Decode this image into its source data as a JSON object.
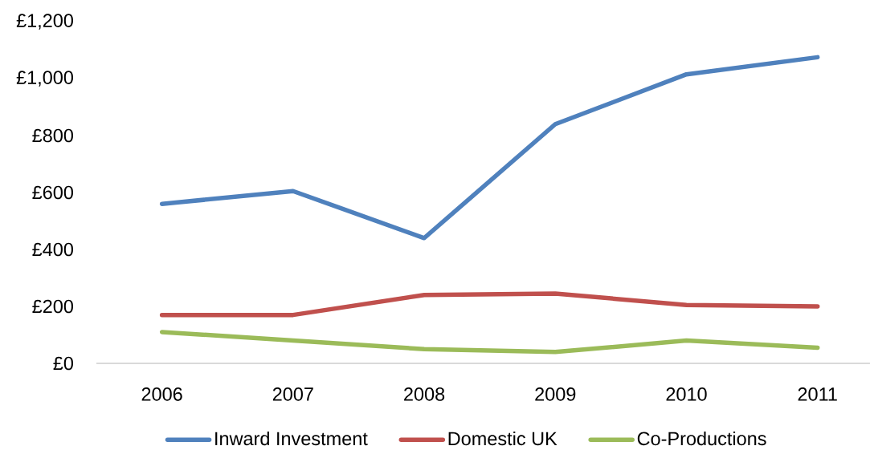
{
  "chart_data": {
    "type": "line",
    "categories": [
      "2006",
      "2007",
      "2008",
      "2009",
      "2010",
      "2011"
    ],
    "series": [
      {
        "name": "Inward Investment",
        "color": "#4f81bd",
        "values": [
          560,
          605,
          440,
          840,
          1015,
          1075
        ]
      },
      {
        "name": "Domestic UK",
        "color": "#c0504d",
        "values": [
          170,
          170,
          240,
          245,
          205,
          200
        ]
      },
      {
        "name": "Co-Productions",
        "color": "#9bbb59",
        "values": [
          110,
          80,
          50,
          40,
          80,
          55
        ]
      }
    ],
    "ylim": [
      0,
      1200
    ],
    "yticks": [
      {
        "value": 0,
        "label": "£0"
      },
      {
        "value": 200,
        "label": "£200"
      },
      {
        "value": 400,
        "label": "£400"
      },
      {
        "value": 600,
        "label": "£600"
      },
      {
        "value": 800,
        "label": "£800"
      },
      {
        "value": 1000,
        "label": "£1,000"
      },
      {
        "value": 1200,
        "label": "£1,200"
      }
    ],
    "legend": "bottom",
    "marker": "none",
    "line_style": "solid"
  }
}
